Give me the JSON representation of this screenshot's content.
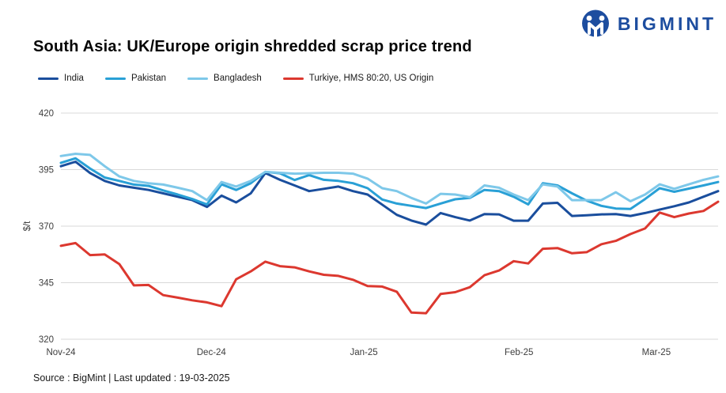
{
  "logo": {
    "text": "BIGMINT",
    "icon": "bigmint-monogram-icon",
    "color": "#1d4d9f"
  },
  "footer": {
    "source": "Source : BigMint | Last updated : 19-03-2025"
  },
  "chart_data": {
    "type": "line",
    "title": "South Asia: UK/Europe origin shredded scrap price trend",
    "xlabel": "",
    "ylabel": "$/t",
    "ylim": [
      320,
      420
    ],
    "yticks": [
      320,
      345,
      370,
      395,
      420
    ],
    "xticks": [
      {
        "label": "Nov-24",
        "f": 0.0
      },
      {
        "label": "Dec-24",
        "f": 0.229
      },
      {
        "label": "Jan-25",
        "f": 0.461
      },
      {
        "label": "Feb-25",
        "f": 0.697
      },
      {
        "label": "Mar-25",
        "f": 0.906
      }
    ],
    "grid": "horizontal-only",
    "legend_position": "top-left",
    "line_width": 3,
    "gridline_color": "#d9d9d9",
    "series": [
      {
        "name": "India",
        "color": "#1a4e9d",
        "values": [
          396.5,
          398.5,
          393.5,
          390,
          388,
          387,
          386,
          384.5,
          383,
          381.5,
          378.5,
          383.5,
          380.5,
          384.5,
          393.5,
          390.5,
          388,
          385.5,
          386.5,
          387.5,
          385.5,
          384,
          379.5,
          375,
          372.5,
          370.7,
          375.8,
          374,
          372.5,
          375.3,
          375.2,
          372.4,
          372.4,
          380,
          380.3,
          374.5,
          374.8,
          375.2,
          375.3,
          374.5,
          375.8,
          377.3,
          378.8,
          380.5,
          383,
          385.5
        ]
      },
      {
        "name": "Pakistan",
        "color": "#29a0d6",
        "values": [
          398,
          400,
          395.5,
          391.5,
          390,
          388.4,
          387.8,
          385.8,
          384,
          382,
          379.6,
          388.5,
          386,
          389,
          394,
          393.4,
          390.4,
          392.6,
          390.5,
          390,
          389,
          386.8,
          381.8,
          380,
          379,
          378,
          380,
          381.9,
          382.5,
          386,
          385.5,
          383,
          379.6,
          389,
          388,
          384.5,
          381.3,
          379,
          377.8,
          377.6,
          382,
          386.8,
          385.2,
          386.6,
          388,
          389.5
        ]
      },
      {
        "name": "Bangladesh",
        "color": "#7ec8e9",
        "values": [
          401,
          402,
          401.5,
          396.5,
          392,
          390,
          389,
          388.4,
          387,
          385.5,
          381.5,
          389.5,
          387.5,
          390,
          394,
          393.6,
          393.2,
          393.4,
          393.6,
          393.6,
          393.2,
          391,
          386.8,
          385.5,
          382.5,
          380,
          384.3,
          384,
          382.8,
          388,
          387,
          384,
          381.5,
          388.5,
          387.5,
          381.5,
          381.5,
          381.5,
          385,
          381,
          384,
          388.5,
          386.5,
          388.5,
          390.5,
          392
        ]
      },
      {
        "name": "Turkiye, HMS 80:20, US Origin",
        "color": "#dc382f",
        "values": [
          361.3,
          362.5,
          357.2,
          357.5,
          353.2,
          343.8,
          344,
          339.5,
          338.4,
          337.2,
          336.3,
          334.6,
          346.5,
          350,
          354.3,
          352.3,
          351.8,
          350,
          348.5,
          348,
          346.3,
          343.5,
          343.3,
          341,
          331.8,
          331.5,
          340,
          340.8,
          343,
          348.3,
          350.4,
          354.5,
          353.5,
          360,
          360.3,
          358,
          358.5,
          362,
          363.5,
          366.5,
          369,
          376,
          374,
          375.6,
          376.7,
          380.8
        ]
      }
    ]
  }
}
